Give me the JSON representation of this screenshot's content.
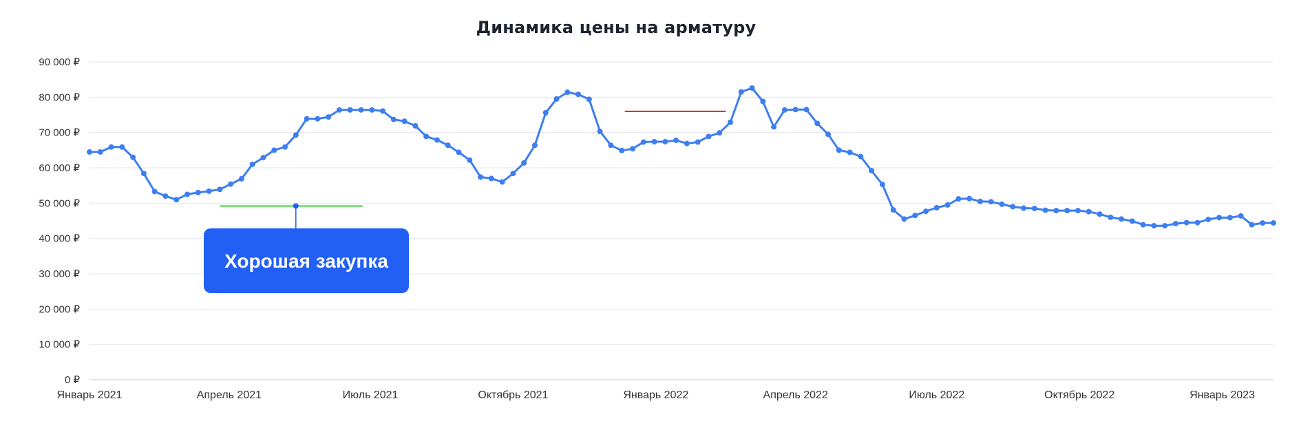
{
  "chart_data": {
    "type": "line",
    "title": "Динамика цены на арматуру",
    "xlabel": "",
    "ylabel": "",
    "ylim": [
      0,
      90000
    ],
    "y_ticks": [
      0,
      10000,
      20000,
      30000,
      40000,
      50000,
      60000,
      70000,
      80000,
      90000
    ],
    "y_tick_labels": [
      "0 ₽",
      "10 000 ₽",
      "20 000 ₽",
      "30 000 ₽",
      "40 000 ₽",
      "50 000 ₽",
      "60 000 ₽",
      "70 000 ₽",
      "80 000 ₽",
      "90 000 ₽"
    ],
    "x_ticks": [
      "2021-01-01",
      "2021-04-01",
      "2021-07-01",
      "2021-10-01",
      "2022-01-01",
      "2022-04-01",
      "2022-07-01",
      "2022-10-01",
      "2023-01-01"
    ],
    "x_tick_labels": [
      "Январь 2021",
      "Апрель 2021",
      "Июль 2021",
      "Октябрь 2021",
      "Январь 2022",
      "Апрель 2022",
      "Июль 2022",
      "Октябрь 2022",
      "Январь 2023"
    ],
    "grid": true,
    "line_color": "#3d7ef0",
    "series": [
      {
        "x": [
          "2021-01-01",
          "2021-01-08",
          "2021-01-15",
          "2021-01-22",
          "2021-01-29",
          "2021-02-05",
          "2021-02-12",
          "2021-02-19",
          "2021-02-26",
          "2021-03-05",
          "2021-03-12",
          "2021-03-19",
          "2021-03-26",
          "2021-04-02",
          "2021-04-09",
          "2021-04-16",
          "2021-04-23",
          "2021-04-30",
          "2021-05-07",
          "2021-05-14",
          "2021-05-21",
          "2021-05-28",
          "2021-06-04",
          "2021-06-11",
          "2021-06-18",
          "2021-06-25",
          "2021-07-02",
          "2021-07-09",
          "2021-07-16",
          "2021-07-23",
          "2021-07-30",
          "2021-08-06",
          "2021-08-13",
          "2021-08-20",
          "2021-08-27",
          "2021-09-03",
          "2021-09-10",
          "2021-09-17",
          "2021-09-24",
          "2021-10-01",
          "2021-10-08",
          "2021-10-15",
          "2021-10-22",
          "2021-10-29",
          "2021-11-05",
          "2021-11-12",
          "2021-11-19",
          "2021-11-26",
          "2021-12-03",
          "2021-12-10",
          "2021-12-17",
          "2021-12-24",
          "2021-12-31",
          "2022-01-07",
          "2022-01-14",
          "2022-01-21",
          "2022-01-28",
          "2022-02-04",
          "2022-02-11",
          "2022-02-18",
          "2022-02-25",
          "2022-03-04",
          "2022-03-11",
          "2022-03-18",
          "2022-03-25",
          "2022-04-01",
          "2022-04-08",
          "2022-04-15",
          "2022-04-22",
          "2022-04-29",
          "2022-05-06",
          "2022-05-13",
          "2022-05-20",
          "2022-05-27",
          "2022-06-03",
          "2022-06-10",
          "2022-06-17",
          "2022-06-24",
          "2022-07-01",
          "2022-07-08",
          "2022-07-15",
          "2022-07-22",
          "2022-07-29",
          "2022-08-05",
          "2022-08-12",
          "2022-08-19",
          "2022-08-26",
          "2022-09-02",
          "2022-09-09",
          "2022-09-16",
          "2022-09-23",
          "2022-09-30",
          "2022-10-07",
          "2022-10-14",
          "2022-10-21",
          "2022-10-28",
          "2022-11-04",
          "2022-11-11",
          "2022-11-18",
          "2022-11-25",
          "2022-12-02",
          "2022-12-09",
          "2022-12-16",
          "2022-12-23",
          "2022-12-30",
          "2023-01-06",
          "2023-01-13",
          "2023-01-20",
          "2023-01-27",
          "2023-02-03"
        ],
        "values": [
          64500,
          64500,
          65900,
          65900,
          63000,
          58400,
          53300,
          52000,
          51000,
          52500,
          53000,
          53400,
          53900,
          55400,
          56900,
          61000,
          62900,
          65000,
          65900,
          69300,
          73900,
          73900,
          74400,
          76400,
          76400,
          76400,
          76400,
          76100,
          73700,
          73200,
          71900,
          68900,
          67900,
          66400,
          64400,
          62200,
          57400,
          57000,
          56000,
          58400,
          61400,
          66400,
          75600,
          79500,
          81400,
          80800,
          79400,
          70300,
          66400,
          64900,
          65400,
          67300,
          67400,
          67400,
          67800,
          66900,
          67300,
          68900,
          69900,
          72900,
          81500,
          82600,
          78800,
          71600,
          76400,
          76500,
          76500,
          72600,
          69500,
          65000,
          64400,
          63200,
          59200,
          55300,
          48100,
          45500,
          46500,
          47700,
          48700,
          49500,
          51200,
          51300,
          50500,
          50400,
          49700,
          49000,
          48600,
          48500,
          48000,
          47900,
          47900,
          47900,
          47600,
          46900,
          46000,
          45500,
          44900,
          43900,
          43600,
          43600,
          44200,
          44500,
          44500,
          45400,
          45900,
          45900,
          46400,
          43900,
          44400,
          44400
        ]
      }
    ],
    "reference_lines": [
      {
        "from": "2021-03-26",
        "to": "2021-06-26",
        "y": 49200,
        "color": "#3ad63a"
      },
      {
        "from": "2021-12-12",
        "to": "2022-02-15",
        "y": 76000,
        "color": "#e02020"
      }
    ],
    "annotations": [
      {
        "text": "Хорошая закупка",
        "x": "2021-05-14",
        "y": 49200,
        "box_color": "#2260f5",
        "text_color": "#ffffff"
      }
    ]
  }
}
